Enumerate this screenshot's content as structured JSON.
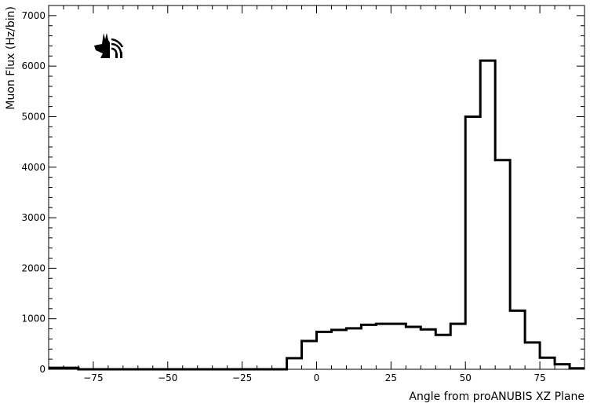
{
  "chart_data": {
    "type": "bar",
    "histogram_step": true,
    "xlabel": "Angle from proANUBIS XZ Plane",
    "ylabel": "Muon Flux (Hz/bin)",
    "xlim": [
      -90,
      90
    ],
    "ylim": [
      0,
      7200
    ],
    "x_ticks": [
      -75,
      -50,
      -25,
      0,
      25,
      50,
      75
    ],
    "x_tick_labels": [
      "−75",
      "−50",
      "−25",
      "0",
      "25",
      "50",
      "75"
    ],
    "y_ticks": [
      0,
      1000,
      2000,
      3000,
      4000,
      5000,
      6000,
      7000
    ],
    "y_tick_labels": [
      "0",
      "1000",
      "2000",
      "3000",
      "4000",
      "5000",
      "6000",
      "7000"
    ],
    "bin_edges": [
      -90,
      -85,
      -80,
      -75,
      -70,
      -65,
      -60,
      -55,
      -50,
      -45,
      -40,
      -35,
      -30,
      -25,
      -20,
      -15,
      -10,
      -5,
      0,
      5,
      10,
      15,
      20,
      25,
      30,
      35,
      40,
      45,
      50,
      55,
      60,
      65,
      70,
      75,
      80,
      85,
      90
    ],
    "values": [
      30,
      30,
      0,
      0,
      0,
      0,
      0,
      0,
      0,
      0,
      0,
      0,
      0,
      0,
      0,
      0,
      220,
      560,
      740,
      780,
      810,
      880,
      900,
      900,
      840,
      790,
      680,
      900,
      5000,
      6110,
      4140,
      1160,
      530,
      230,
      100,
      20
    ],
    "grid": false,
    "line_color": "#000000",
    "logo_icon": "jackal-head-antenna-logo"
  }
}
